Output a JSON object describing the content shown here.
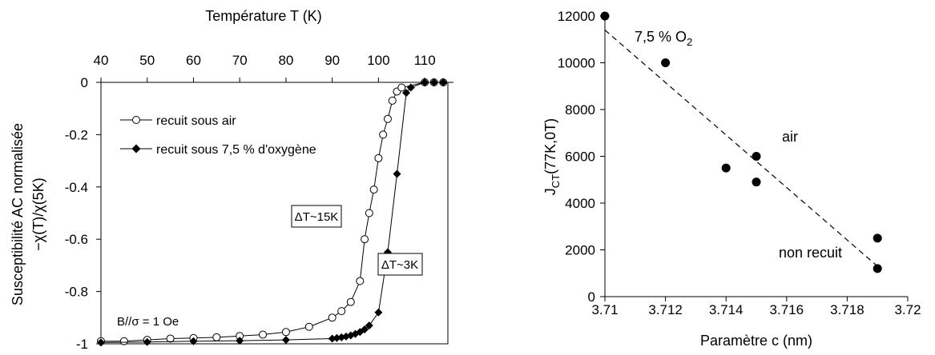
{
  "chart_data": [
    {
      "type": "line",
      "title": "Température T (K)",
      "xlabel": "Température T (K)",
      "ylabel": "Susceptibilité AC normalisée",
      "ylabel2": "−χ(T)/χ(5K)",
      "xlim": [
        40,
        115
      ],
      "ylim": [
        -1,
        0
      ],
      "xticks": [
        "40",
        "50",
        "60",
        "70",
        "80",
        "90",
        "100",
        "110"
      ],
      "xtick_values": [
        40,
        50,
        60,
        70,
        80,
        90,
        100,
        110
      ],
      "yticks": [
        "0",
        "-0.2",
        "-0.4",
        "-0.6",
        "-0.8",
        "-1"
      ],
      "ytick_values": [
        0,
        -0.2,
        -0.4,
        -0.6,
        -0.8,
        -1
      ],
      "legend_placement": "top-left",
      "series": [
        {
          "name": "recuit sous air",
          "marker": "open-circle",
          "x": [
            40,
            45,
            50,
            55,
            60,
            65,
            70,
            75,
            80,
            85,
            90,
            92,
            94,
            96,
            97,
            98,
            99,
            100,
            101,
            102,
            103,
            104,
            105,
            110,
            112,
            114
          ],
          "y": [
            -0.99,
            -0.99,
            -0.985,
            -0.98,
            -0.978,
            -0.975,
            -0.97,
            -0.965,
            -0.955,
            -0.935,
            -0.9,
            -0.875,
            -0.84,
            -0.76,
            -0.6,
            -0.5,
            -0.41,
            -0.29,
            -0.2,
            -0.14,
            -0.07,
            -0.035,
            -0.02,
            0,
            0,
            0
          ]
        },
        {
          "name": "recuit sous 7,5 % d'oxygène",
          "marker": "filled-diamond",
          "x": [
            40,
            50,
            60,
            70,
            80,
            90,
            91,
            92,
            93,
            94,
            95,
            96,
            97,
            98,
            100,
            102,
            104,
            106,
            107,
            110,
            112,
            114
          ],
          "y": [
            -0.995,
            -0.993,
            -0.99,
            -0.988,
            -0.985,
            -0.98,
            -0.978,
            -0.975,
            -0.972,
            -0.968,
            -0.962,
            -0.955,
            -0.945,
            -0.93,
            -0.88,
            -0.65,
            -0.35,
            -0.04,
            -0.02,
            0,
            0,
            0
          ]
        }
      ],
      "annotations": [
        "ΔT~15K",
        "ΔT~3K",
        "B//σ = 1 Oe"
      ]
    },
    {
      "type": "scatter",
      "xlabel": "Paramètre c (nm)",
      "ylabel": "J_CT(77K,0T)",
      "ylabel_main": "J",
      "ylabel_sub": "CT",
      "ylabel_tail": "(77K,0T)",
      "xlim": [
        3.71,
        3.72
      ],
      "ylim": [
        0,
        12000
      ],
      "xticks": [
        "3.71",
        "3.712",
        "3.714",
        "3.716",
        "3.718",
        "3.72"
      ],
      "xtick_values": [
        3.71,
        3.712,
        3.714,
        3.716,
        3.718,
        3.72
      ],
      "yticks": [
        "0",
        "2000",
        "4000",
        "6000",
        "8000",
        "10000",
        "12000"
      ],
      "ytick_values": [
        0,
        2000,
        4000,
        6000,
        8000,
        10000,
        12000
      ],
      "points": [
        {
          "x": 3.71,
          "y": 12000
        },
        {
          "x": 3.712,
          "y": 10000
        },
        {
          "x": 3.714,
          "y": 5500
        },
        {
          "x": 3.715,
          "y": 6000
        },
        {
          "x": 3.715,
          "y": 4900
        },
        {
          "x": 3.719,
          "y": 2500
        },
        {
          "x": 3.719,
          "y": 1200
        }
      ],
      "trendline": {
        "style": "dashed",
        "x": [
          3.71,
          3.719
        ],
        "y": [
          11400,
          1300
        ]
      },
      "annotations": {
        "o2_main": "7,5 % O",
        "o2_sub": "2",
        "air": "air",
        "non_recuit": "non recuit"
      }
    }
  ]
}
